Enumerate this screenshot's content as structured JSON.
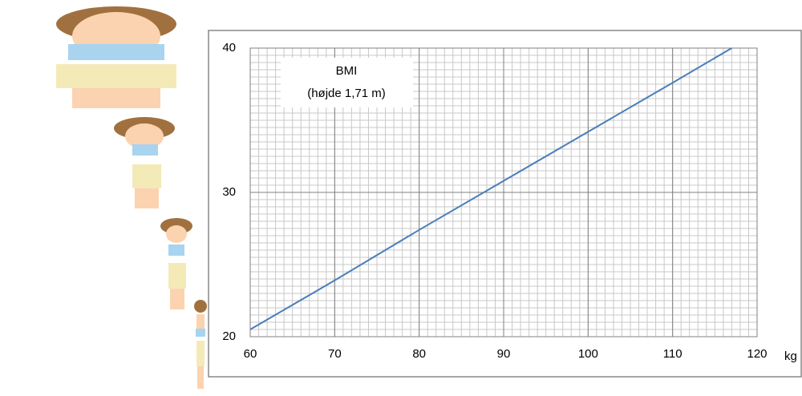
{
  "chart_data": {
    "type": "line",
    "title": "BMI",
    "subtitle": "(højde 1,71 m)",
    "x_label": "kg",
    "x": [
      60,
      70,
      80,
      90,
      100,
      110,
      117
    ],
    "series": [
      {
        "name": "BMI",
        "color": "#4a7ebb",
        "values": [
          20.5,
          23.9,
          27.4,
          30.8,
          34.2,
          37.6,
          40.0
        ]
      }
    ],
    "xlim": [
      60,
      120
    ],
    "xticks": [
      60,
      70,
      80,
      90,
      100,
      110,
      120
    ],
    "ylim": [
      20,
      40
    ],
    "yticks": [
      20,
      30,
      40
    ],
    "grid": true,
    "minor_grid": {
      "x": 1,
      "y": 0.5
    }
  }
}
